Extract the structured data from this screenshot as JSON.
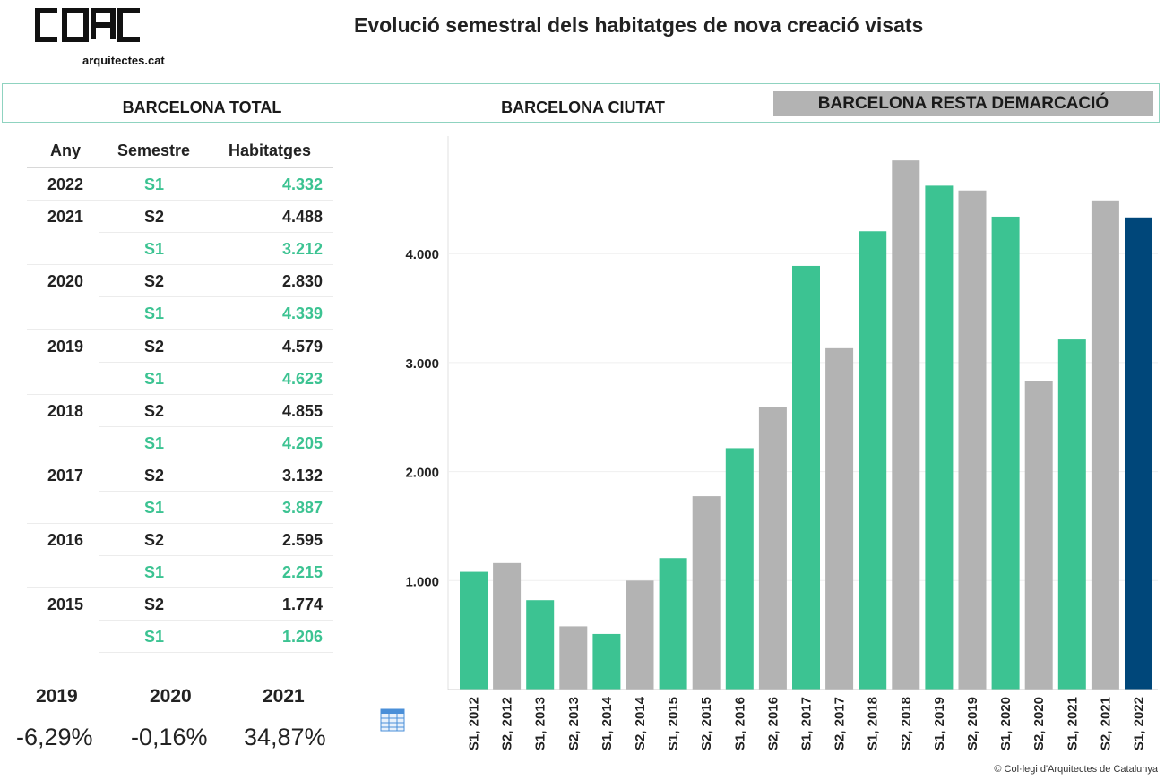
{
  "header": {
    "logo_text": "arquitectes.cat",
    "title": "Evolució semestral dels habitatges de nova creació visats"
  },
  "tabs": [
    {
      "label": "BARCELONA TOTAL",
      "active": false
    },
    {
      "label": "BARCELONA CIUTAT",
      "active": false
    },
    {
      "label": "BARCELONA RESTA DEMARCACIÓ",
      "active": true
    }
  ],
  "table": {
    "headers": {
      "any": "Any",
      "semestre": "Semestre",
      "habitatges": "Habitatges"
    },
    "rows": [
      {
        "any": "2022",
        "semestre": "S1",
        "habitatges": "4.332"
      },
      {
        "any": "2021",
        "semestre": "S2",
        "habitatges": "4.488"
      },
      {
        "any": "",
        "semestre": "S1",
        "habitatges": "3.212"
      },
      {
        "any": "2020",
        "semestre": "S2",
        "habitatges": "2.830"
      },
      {
        "any": "",
        "semestre": "S1",
        "habitatges": "4.339"
      },
      {
        "any": "2019",
        "semestre": "S2",
        "habitatges": "4.579"
      },
      {
        "any": "",
        "semestre": "S1",
        "habitatges": "4.623"
      },
      {
        "any": "2018",
        "semestre": "S2",
        "habitatges": "4.855"
      },
      {
        "any": "",
        "semestre": "S1",
        "habitatges": "4.205"
      },
      {
        "any": "2017",
        "semestre": "S2",
        "habitatges": "3.132"
      },
      {
        "any": "",
        "semestre": "S1",
        "habitatges": "3.887"
      },
      {
        "any": "2016",
        "semestre": "S2",
        "habitatges": "2.595"
      },
      {
        "any": "",
        "semestre": "S1",
        "habitatges": "2.215"
      },
      {
        "any": "2015",
        "semestre": "S2",
        "habitatges": "1.774"
      },
      {
        "any": "",
        "semestre": "S1",
        "habitatges": "1.206"
      }
    ]
  },
  "growth": [
    {
      "year": "2019",
      "value": "-6,29%"
    },
    {
      "year": "2020",
      "value": "-0,16%"
    },
    {
      "year": "2021",
      "value": "34,87%"
    }
  ],
  "footer": "© Col·legi d'Arquitectes de Catalunya",
  "colors": {
    "s1": "#3cc392",
    "s2": "#b3b3b3",
    "highlight": "#00477a",
    "accent_border": "#8fd3c0"
  },
  "icons": {
    "table_view": "table-icon"
  },
  "chart_data": {
    "type": "bar",
    "categories": [
      "S1, 2012",
      "S2, 2012",
      "S1, 2013",
      "S2, 2013",
      "S1, 2014",
      "S2, 2014",
      "S1, 2015",
      "S2, 2015",
      "S1, 2016",
      "S2, 2016",
      "S1, 2017",
      "S2, 2017",
      "S1, 2018",
      "S2, 2018",
      "S1, 2019",
      "S2, 2019",
      "S1, 2020",
      "S2, 2020",
      "S1, 2021",
      "S2, 2021",
      "S1, 2022"
    ],
    "values": [
      1080,
      1160,
      820,
      580,
      510,
      1000,
      1206,
      1774,
      2215,
      2595,
      3887,
      3132,
      4205,
      4855,
      4623,
      4579,
      4339,
      2830,
      3212,
      4488,
      4332
    ],
    "highlight_index": 20,
    "y_ticks": [
      1000,
      2000,
      3000,
      4000
    ],
    "y_tick_labels": [
      "1.000",
      "2.000",
      "3.000",
      "4.000"
    ],
    "ylim": [
      0,
      5000
    ],
    "grid": true,
    "title": "",
    "xlabel": "",
    "ylabel": ""
  }
}
